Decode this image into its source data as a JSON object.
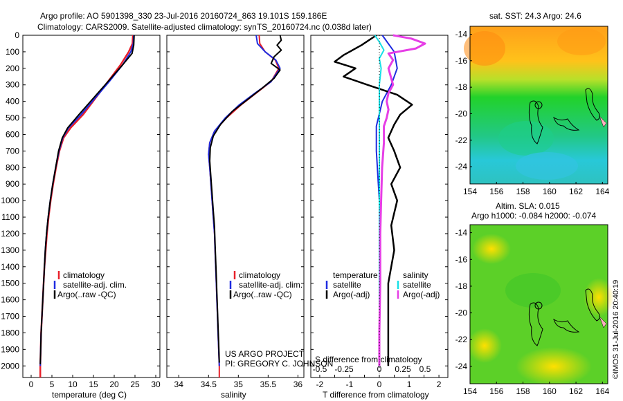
{
  "header": {
    "title_line1": "Argo profile: AO 5901398_330 23-Jul-2016 20160724_863 19.101S 159.186E",
    "title_line2": "Climatology: CARS2009. Satellite-adjusted climatology: synTS_20160724.nc (0.038d later)"
  },
  "colors": {
    "climatology": "#e8202a",
    "satellite": "#1e2be0",
    "argo": "#000000",
    "satellite_s": "#17e0e6",
    "argo_s": "#e63ee6"
  },
  "depth_axis": {
    "ticks": [
      "0",
      "100",
      "200",
      "300",
      "400",
      "500",
      "600",
      "700",
      "800",
      "900",
      "1000",
      "1100",
      "1200",
      "1300",
      "1400",
      "1500",
      "1600",
      "1700",
      "1800",
      "1900",
      "2000"
    ]
  },
  "panels": {
    "temperature": {
      "xlabel": "temperature (deg C)",
      "xticks": [
        "0",
        "5",
        "10",
        "15",
        "20",
        "25",
        "30"
      ],
      "legend": [
        "climatology",
        "satellite-adj. clim.",
        "Argo(..raw -QC)"
      ]
    },
    "salinity": {
      "xlabel": "salinity",
      "xticks": [
        "34",
        "34.5",
        "35",
        "35.5",
        "36"
      ],
      "legend": [
        "climatology",
        "satellite-adj. clim.",
        "Argo(..raw -QC)"
      ],
      "project_line1": "US ARGO PROJECT",
      "project_line2": "PI: GREGORY C. JOHNSON"
    },
    "difference": {
      "xlabel_top": "S difference from climatology",
      "xlabel_bottom": "T difference from climatology",
      "xticks_T": [
        "-2",
        "-1.5",
        "-1",
        "-0.5",
        "0",
        "0.5",
        "1",
        "1.5",
        "2"
      ],
      "xticks_S": [
        "-0.5",
        "-0.25",
        "0",
        "0.25",
        "0.5"
      ],
      "legend_temp_title": "temperature",
      "legend_sal_title": "salinity",
      "legend_temp": [
        "satellite",
        "Argo(-adj)"
      ],
      "legend_sal": [
        "satellite",
        "Argo(-adj)"
      ]
    },
    "sst_map": {
      "title": "sat. SST: 24.3 Argo: 24.6",
      "yticks": [
        "-14",
        "-16",
        "-18",
        "-20",
        "-22",
        "-24"
      ],
      "xticks": [
        "154",
        "156",
        "158",
        "160",
        "162",
        "164"
      ]
    },
    "sla_map": {
      "title_line1": "Altim. SLA: 0.015",
      "title_line2": "Argo h1000: -0.084 h2000: -0.074",
      "yticks": [
        "-14",
        "-16",
        "-18",
        "-20",
        "-22",
        "-24"
      ],
      "xticks": [
        "154",
        "156",
        "158",
        "160",
        "162",
        "164"
      ]
    }
  },
  "side_label": "©IMOS 31-Jul-2016 20:40:19",
  "chart_data": [
    {
      "type": "line",
      "name": "temperature profile",
      "xlabel": "temperature (deg C)",
      "ylabel": "",
      "xlim": [
        -2,
        31
      ],
      "ylim": [
        2070,
        0
      ],
      "series": [
        {
          "name": "climatology",
          "points": [
            [
              24.5,
              0
            ],
            [
              24.4,
              50
            ],
            [
              23.5,
              100
            ],
            [
              21.5,
              180
            ],
            [
              18.5,
              280
            ],
            [
              15.5,
              380
            ],
            [
              12.5,
              480
            ],
            [
              9.5,
              560
            ],
            [
              7.8,
              620
            ],
            [
              6.8,
              700
            ],
            [
              6.0,
              800
            ],
            [
              5.3,
              900
            ],
            [
              4.7,
              1000
            ],
            [
              4.2,
              1100
            ],
            [
              3.8,
              1200
            ],
            [
              3.5,
              1300
            ],
            [
              3.2,
              1400
            ],
            [
              3.0,
              1500
            ],
            [
              2.8,
              1600
            ],
            [
              2.6,
              1700
            ],
            [
              2.4,
              1800
            ],
            [
              2.3,
              1900
            ],
            [
              2.2,
              2000
            ],
            [
              2.2,
              2070
            ]
          ]
        },
        {
          "name": "satellite-adj. clim.",
          "points": [
            [
              24.7,
              0
            ],
            [
              24.6,
              50
            ],
            [
              24.0,
              100
            ],
            [
              22.0,
              180
            ],
            [
              18.8,
              280
            ],
            [
              15.4,
              380
            ],
            [
              12.0,
              480
            ],
            [
              9.0,
              560
            ],
            [
              7.6,
              620
            ],
            [
              6.7,
              700
            ],
            [
              5.9,
              800
            ],
            [
              5.2,
              900
            ],
            [
              4.6,
              1000
            ],
            [
              4.1,
              1100
            ],
            [
              3.7,
              1200
            ],
            [
              3.4,
              1300
            ],
            [
              3.2,
              1400
            ],
            [
              3.0,
              1500
            ],
            [
              2.8,
              1600
            ],
            [
              2.6,
              1700
            ],
            [
              2.4,
              1800
            ],
            [
              2.3,
              1900
            ],
            [
              2.2,
              2000
            ]
          ]
        },
        {
          "name": "Argo(..raw -QC)",
          "points": [
            [
              24.8,
              0
            ],
            [
              24.7,
              60
            ],
            [
              24.3,
              110
            ],
            [
              22.0,
              180
            ],
            [
              18.5,
              280
            ],
            [
              15.0,
              380
            ],
            [
              11.5,
              480
            ],
            [
              8.8,
              560
            ],
            [
              7.5,
              620
            ],
            [
              6.6,
              700
            ],
            [
              5.9,
              800
            ],
            [
              5.2,
              900
            ],
            [
              4.6,
              1000
            ],
            [
              4.1,
              1100
            ],
            [
              3.7,
              1200
            ],
            [
              3.4,
              1300
            ],
            [
              3.2,
              1400
            ],
            [
              3.0,
              1500
            ],
            [
              2.8,
              1600
            ],
            [
              2.6,
              1700
            ],
            [
              2.4,
              1800
            ],
            [
              2.3,
              1900
            ],
            [
              2.2,
              1990
            ]
          ]
        }
      ]
    },
    {
      "type": "line",
      "name": "salinity profile",
      "xlabel": "salinity",
      "ylabel": "",
      "xlim": [
        33.8,
        36.1
      ],
      "ylim": [
        2070,
        0
      ],
      "series": [
        {
          "name": "climatology",
          "points": [
            [
              35.35,
              0
            ],
            [
              35.36,
              50
            ],
            [
              35.45,
              100
            ],
            [
              35.62,
              150
            ],
            [
              35.68,
              200
            ],
            [
              35.55,
              280
            ],
            [
              35.3,
              350
            ],
            [
              35.05,
              420
            ],
            [
              34.8,
              500
            ],
            [
              34.6,
              580
            ],
            [
              34.52,
              650
            ],
            [
              34.5,
              720
            ],
            [
              34.52,
              800
            ],
            [
              34.54,
              900
            ],
            [
              34.56,
              1000
            ],
            [
              34.58,
              1100
            ],
            [
              34.6,
              1200
            ],
            [
              34.61,
              1300
            ],
            [
              34.62,
              1400
            ],
            [
              34.63,
              1500
            ],
            [
              34.64,
              1600
            ],
            [
              34.65,
              1700
            ],
            [
              34.66,
              1800
            ],
            [
              34.67,
              1900
            ],
            [
              34.68,
              2000
            ],
            [
              34.68,
              2070
            ]
          ]
        },
        {
          "name": "satellite-adj. clim.",
          "points": [
            [
              35.3,
              0
            ],
            [
              35.32,
              50
            ],
            [
              35.45,
              100
            ],
            [
              35.63,
              150
            ],
            [
              35.7,
              200
            ],
            [
              35.55,
              280
            ],
            [
              35.28,
              350
            ],
            [
              35.02,
              420
            ],
            [
              34.78,
              500
            ],
            [
              34.6,
              580
            ],
            [
              34.52,
              650
            ],
            [
              34.5,
              720
            ],
            [
              34.52,
              800
            ],
            [
              34.54,
              900
            ],
            [
              34.56,
              1000
            ],
            [
              34.58,
              1100
            ],
            [
              34.6,
              1200
            ],
            [
              34.61,
              1300
            ],
            [
              34.62,
              1400
            ],
            [
              34.63,
              1500
            ],
            [
              34.64,
              1600
            ],
            [
              34.65,
              1700
            ],
            [
              34.66,
              1800
            ],
            [
              34.67,
              1900
            ],
            [
              34.68,
              2000
            ]
          ]
        },
        {
          "name": "Argo(..raw -QC)",
          "points": [
            [
              35.7,
              0
            ],
            [
              35.72,
              30
            ],
            [
              35.65,
              60
            ],
            [
              35.72,
              90
            ],
            [
              35.6,
              130
            ],
            [
              35.55,
              170
            ],
            [
              35.7,
              210
            ],
            [
              35.6,
              260
            ],
            [
              35.4,
              320
            ],
            [
              35.15,
              390
            ],
            [
              34.9,
              460
            ],
            [
              34.7,
              540
            ],
            [
              34.58,
              610
            ],
            [
              34.53,
              680
            ],
            [
              34.52,
              760
            ],
            [
              34.54,
              860
            ],
            [
              34.56,
              960
            ],
            [
              34.58,
              1060
            ],
            [
              34.6,
              1160
            ],
            [
              34.61,
              1260
            ],
            [
              34.62,
              1360
            ],
            [
              34.63,
              1460
            ],
            [
              34.64,
              1560
            ],
            [
              34.65,
              1660
            ],
            [
              34.66,
              1760
            ],
            [
              34.67,
              1860
            ],
            [
              34.68,
              1980
            ]
          ]
        }
      ]
    },
    {
      "type": "line",
      "name": "difference from climatology",
      "xlabel": "T difference from climatology",
      "ylabel": "",
      "xlim": [
        -2.3,
        2.3
      ],
      "ylim": [
        2070,
        0
      ],
      "series": [
        {
          "name": "temperature satellite",
          "points": [
            [
              0.1,
              0
            ],
            [
              0.3,
              50
            ],
            [
              0.5,
              100
            ],
            [
              0.6,
              200
            ],
            [
              0.4,
              300
            ],
            [
              0.1,
              400
            ],
            [
              -0.1,
              550
            ],
            [
              -0.1,
              700
            ],
            [
              0,
              1000
            ],
            [
              0,
              2000
            ]
          ]
        },
        {
          "name": "temperature Argo(-adj)",
          "points": [
            [
              -0.1,
              0
            ],
            [
              -0.6,
              60
            ],
            [
              -1.2,
              120
            ],
            [
              -1.5,
              160
            ],
            [
              -0.8,
              200
            ],
            [
              -1.2,
              250
            ],
            [
              -0.4,
              300
            ],
            [
              0.6,
              360
            ],
            [
              1.1,
              420
            ],
            [
              0.7,
              480
            ],
            [
              0.5,
              540
            ],
            [
              0.3,
              620
            ],
            [
              0.5,
              700
            ],
            [
              0.7,
              800
            ],
            [
              0.4,
              900
            ],
            [
              0.6,
              1000
            ],
            [
              0.4,
              1150
            ],
            [
              0.5,
              1300
            ],
            [
              0.3,
              1500
            ],
            [
              0.3,
              1700
            ],
            [
              0.3,
              1900
            ],
            [
              0.3,
              2000
            ]
          ]
        },
        {
          "name": "salinity satellite",
          "points": [
            [
              -0.05,
              0
            ],
            [
              0.0,
              40
            ],
            [
              0.05,
              90
            ],
            [
              0.0,
              140
            ],
            [
              0.02,
              200
            ],
            [
              0.0,
              300
            ],
            [
              0.0,
              500
            ],
            [
              0.0,
              1000
            ],
            [
              0.0,
              2000
            ]
          ]
        },
        {
          "name": "salinity Argo(-adj)",
          "points": [
            [
              0.15,
              0
            ],
            [
              0.35,
              20
            ],
            [
              0.5,
              50
            ],
            [
              0.4,
              80
            ],
            [
              0.1,
              110
            ],
            [
              0.15,
              150
            ],
            [
              0.1,
              200
            ],
            [
              0.15,
              300
            ],
            [
              0.1,
              350
            ],
            [
              0.08,
              400
            ],
            [
              0.1,
              450
            ],
            [
              0.08,
              500
            ],
            [
              0.05,
              550
            ],
            [
              0.05,
              650
            ],
            [
              0.03,
              800
            ],
            [
              0.02,
              1000
            ],
            [
              0.01,
              1200
            ],
            [
              0.01,
              1500
            ],
            [
              0.0,
              1800
            ],
            [
              0.0,
              2000
            ]
          ]
        }
      ]
    }
  ]
}
